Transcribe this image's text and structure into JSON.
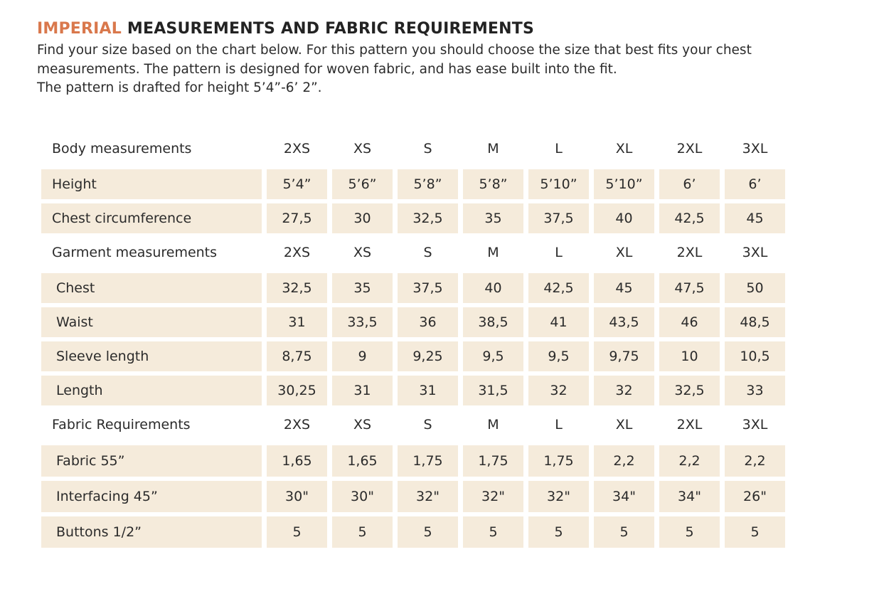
{
  "title": {
    "accent": "IMPERIAL",
    "rest": " MEASUREMENTS AND FABRIC REQUIREMENTS"
  },
  "intro": [
    "Find your size based on the chart below. For this pattern you should choose the size that best fits your chest",
    "measurements. The pattern is designed for woven fabric, and has ease built into the fit.",
    "The pattern is drafted for height 5’4”-6’ 2”."
  ],
  "colors": {
    "accent": "#d9784c",
    "cell_bg": "#f5ebdb",
    "text": "#2b2b2b"
  },
  "sections": [
    {
      "header": "Body measurements",
      "sizes": [
        "2XS",
        "XS",
        "S",
        "M",
        "L",
        "XL",
        "2XL",
        "3XL"
      ],
      "rows": [
        {
          "label": "Height",
          "values": [
            "5’4”",
            "5’6”",
            "5’8”",
            "5’8”",
            "5’10”",
            "5’10”",
            "6’",
            "6’"
          ]
        },
        {
          "label": "Chest circumference",
          "values": [
            "27,5",
            "30",
            "32,5",
            "35",
            "37,5",
            "40",
            "42,5",
            "45"
          ]
        }
      ]
    },
    {
      "header": "Garment measurements",
      "sizes": [
        "2XS",
        "XS",
        "S",
        "M",
        "L",
        "XL",
        "2XL",
        "3XL"
      ],
      "rows": [
        {
          "label": "Chest",
          "values": [
            "32,5",
            "35",
            "37,5",
            "40",
            "42,5",
            "45",
            "47,5",
            "50"
          ]
        },
        {
          "label": "Waist",
          "values": [
            "31",
            "33,5",
            "36",
            "38,5",
            "41",
            "43,5",
            "46",
            "48,5"
          ]
        },
        {
          "label": "Sleeve length",
          "values": [
            "8,75",
            "9",
            "9,25",
            "9,5",
            "9,5",
            "9,75",
            "10",
            "10,5"
          ]
        },
        {
          "label": "Length",
          "values": [
            "30,25",
            "31",
            "31",
            "31,5",
            "32",
            "32",
            "32,5",
            "33"
          ]
        }
      ]
    },
    {
      "header": "Fabric Requirements",
      "sizes": [
        "2XS",
        "XS",
        "S",
        "M",
        "L",
        "XL",
        "2XL",
        "3XL"
      ],
      "rows": [
        {
          "label": "Fabric 55”",
          "values": [
            "1,65",
            "1,65",
            "1,75",
            "1,75",
            "1,75",
            "2,2",
            "2,2",
            "2,2"
          ]
        },
        {
          "label": "Interfacing 45”",
          "values": [
            "30\"",
            "30\"",
            "32\"",
            "32\"",
            "32\"",
            "34\"",
            "34\"",
            "26\""
          ]
        },
        {
          "label": "Buttons 1/2”",
          "values": [
            "5",
            "5",
            "5",
            "5",
            "5",
            "5",
            "5",
            "5"
          ]
        }
      ]
    }
  ]
}
